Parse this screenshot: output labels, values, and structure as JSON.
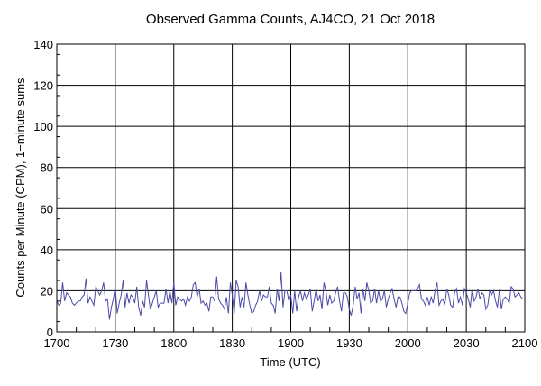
{
  "chart_data": {
    "type": "line",
    "title": "Observed Gamma Counts, AJ4CO, 21 Oct 2018",
    "xlabel": "Time (UTC)",
    "ylabel": "Counts per Minute (CPM), 1−minute sums",
    "x_start": "1700",
    "x_step_minutes": 1,
    "xlim": [
      "1700",
      "2100"
    ],
    "ylim": [
      0,
      140
    ],
    "x_ticks": [
      "1700",
      "1730",
      "1800",
      "1830",
      "1900",
      "1930",
      "2000",
      "2030",
      "2100"
    ],
    "y_ticks": [
      "0",
      "20",
      "40",
      "60",
      "80",
      "100",
      "120",
      "140"
    ],
    "grid": true,
    "line_color": "#4a4aa8",
    "values": [
      15,
      13,
      14,
      24,
      15,
      19,
      18,
      17,
      14,
      13,
      14,
      15,
      15,
      17,
      18,
      26,
      14,
      17,
      15,
      13,
      22,
      20,
      18,
      20,
      24,
      15,
      16,
      6,
      12,
      16,
      22,
      9,
      14,
      18,
      25,
      12,
      19,
      14,
      18,
      17,
      14,
      22,
      12,
      8,
      15,
      12,
      25,
      18,
      11,
      14,
      17,
      20,
      12,
      14,
      14,
      14,
      21,
      14,
      20,
      14,
      24,
      13,
      17,
      16,
      15,
      16,
      13,
      17,
      15,
      17,
      23,
      24,
      17,
      21,
      14,
      15,
      13,
      14,
      10,
      17,
      17,
      15,
      27,
      16,
      14,
      13,
      11,
      17,
      9,
      24,
      18,
      9,
      25,
      22,
      12,
      17,
      12,
      24,
      18,
      13,
      9,
      10,
      13,
      15,
      20,
      15,
      18,
      17,
      17,
      22,
      14,
      13,
      9,
      21,
      15,
      29,
      12,
      20,
      20,
      15,
      18,
      9,
      20,
      10,
      17,
      20,
      15,
      19,
      16,
      18,
      21,
      10,
      15,
      21,
      15,
      18,
      11,
      24,
      20,
      13,
      18,
      14,
      15,
      19,
      22,
      15,
      10,
      19,
      19,
      17,
      11,
      8,
      13,
      22,
      16,
      19,
      9,
      21,
      15,
      24,
      20,
      14,
      15,
      21,
      14,
      20,
      15,
      16,
      20,
      12,
      16,
      19,
      21,
      16,
      12,
      17,
      17,
      14,
      10,
      9,
      14,
      19,
      20,
      20,
      20,
      21,
      23,
      16,
      15,
      13,
      17,
      13,
      17,
      14,
      20,
      24,
      13,
      15,
      16,
      13,
      21,
      18,
      13,
      12,
      19,
      21,
      14,
      17,
      13,
      21,
      19,
      16,
      12,
      21,
      15,
      17,
      21,
      16,
      19,
      18,
      11,
      13,
      20,
      18,
      20,
      15,
      12,
      21,
      11,
      16,
      17,
      16,
      14,
      22,
      21,
      17,
      18,
      19,
      17,
      16,
      16
    ]
  }
}
